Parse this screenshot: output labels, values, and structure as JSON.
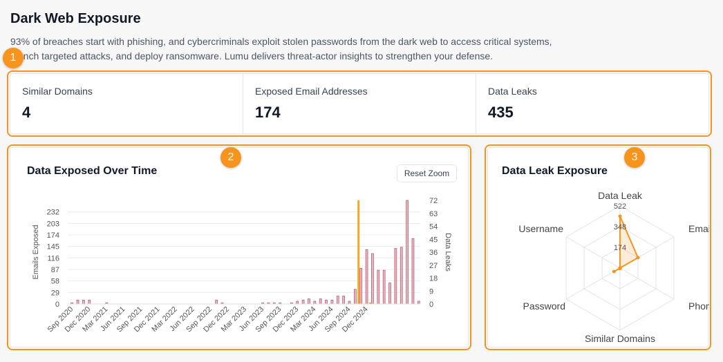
{
  "header": {
    "title": "Dark Web Exposure",
    "description": "93% of breaches start with phishing, and cybercriminals exploit stolen passwords from the dark web to access critical systems, launch targeted attacks, and deploy ransomware. Lumu delivers threat-actor insights to strengthen your defense."
  },
  "badges": [
    "1",
    "2",
    "3"
  ],
  "stats": [
    {
      "label": "Similar Domains",
      "value": "4"
    },
    {
      "label": "Exposed Email Addresses",
      "value": "174"
    },
    {
      "label": "Data Leaks",
      "value": "435"
    }
  ],
  "colors": {
    "accent": "#f7941d",
    "emails_bar": "#e8b4be",
    "emails_bar_border": "#b0566a",
    "leak_bar": "#f5a623"
  },
  "timeline": {
    "title": "Data Exposed Over Time",
    "reset_label": "Reset Zoom",
    "chart_data": {
      "type": "bar",
      "x_tick_labels": [
        "Sep 2020",
        "Dec 2020",
        "Mar 2021",
        "Jun 2021",
        "Sep 2021",
        "Dec 2021",
        "Mar 2022",
        "Jun 2022",
        "Sep 2022",
        "Dec 2022",
        "Mar 2023",
        "Jun 2023",
        "Sep 2023",
        "Dec 2023",
        "Mar 2024",
        "Jun 2024",
        "Sep 2024",
        "Dec 2024"
      ],
      "y_left": {
        "label": "Emails Exposed",
        "ticks": [
          0,
          29,
          58,
          87,
          116,
          145,
          174,
          203,
          232
        ],
        "max": 261
      },
      "y_right": {
        "label": "Data Leaks",
        "ticks": [
          0,
          9,
          18,
          27,
          36,
          45,
          54,
          63,
          72
        ],
        "max": 72
      },
      "series": [
        {
          "name": "Emails Exposed",
          "values": [
            3,
            10,
            10,
            10,
            0,
            0,
            3,
            0,
            0,
            0,
            0,
            0,
            0,
            0,
            0,
            0,
            0,
            0,
            0,
            0,
            0,
            0,
            0,
            0,
            0,
            10,
            3,
            0,
            0,
            0,
            0,
            0,
            0,
            3,
            3,
            3,
            3,
            0,
            3,
            7,
            10,
            13,
            7,
            13,
            10,
            10,
            20,
            20,
            7,
            37,
            90,
            137,
            127,
            85,
            85,
            53,
            140,
            143,
            261,
            165,
            7
          ]
        },
        {
          "name": "Data Leaks",
          "values": [
            0,
            0,
            0,
            0,
            0,
            0,
            0,
            0,
            0,
            0,
            0,
            0,
            0,
            0,
            0,
            0,
            0,
            0,
            0,
            0,
            0,
            0,
            0,
            0,
            0,
            0,
            0,
            0,
            0,
            0,
            0,
            0,
            0,
            0,
            0,
            0,
            0,
            0,
            0,
            0,
            0,
            0,
            0,
            0,
            0,
            0,
            0,
            0,
            0,
            0,
            72,
            0,
            1,
            0,
            0,
            0,
            0,
            0,
            0,
            0,
            0
          ]
        }
      ]
    }
  },
  "radar": {
    "title": "Data Leak Exposure",
    "chart_data": {
      "type": "radar",
      "axes": [
        "Data Leak",
        "Email",
        "Phone",
        "Similar Domains",
        "Password",
        "Username"
      ],
      "ticks": [
        174,
        348,
        522
      ],
      "max": 522,
      "values": [
        435,
        174,
        0,
        4,
        58,
        0
      ]
    }
  }
}
